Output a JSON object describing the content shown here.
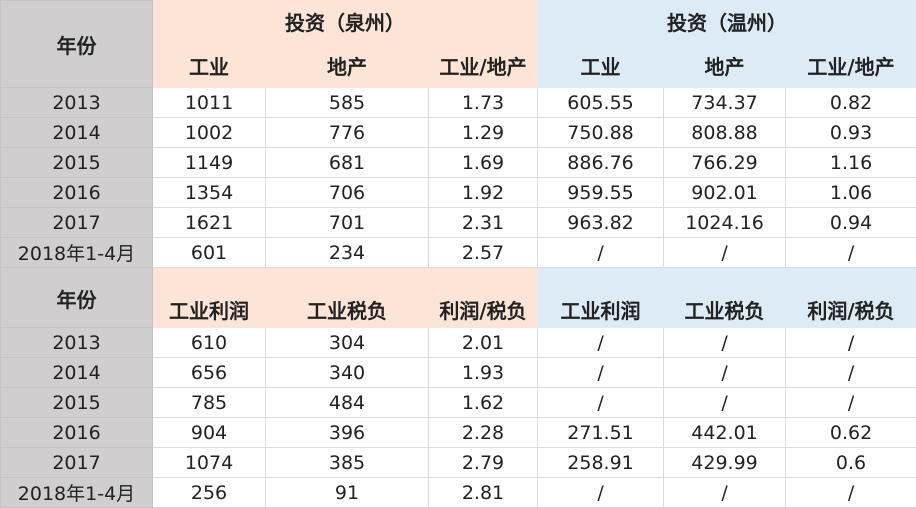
{
  "colors": {
    "peach": "#fce4d6",
    "blue": "#ddebf7",
    "gray": "#d0cece"
  },
  "table1": {
    "year_header": "年份",
    "group_quanzhou": "投资（泉州）",
    "group_wenzhou": "投资（温州）",
    "columns": [
      "工业",
      "地产",
      "工业/地产",
      "工业",
      "地产",
      "工业/地产"
    ],
    "rows": [
      [
        "2013",
        "1011",
        "585",
        "1.73",
        "605.55",
        "734.37",
        "0.82"
      ],
      [
        "2014",
        "1002",
        "776",
        "1.29",
        "750.88",
        "808.88",
        "0.93"
      ],
      [
        "2015",
        "1149",
        "681",
        "1.69",
        "886.76",
        "766.29",
        "1.16"
      ],
      [
        "2016",
        "1354",
        "706",
        "1.92",
        "959.55",
        "902.01",
        "1.06"
      ],
      [
        "2017",
        "1621",
        "701",
        "2.31",
        "963.82",
        "1024.16",
        "0.94"
      ],
      [
        "2018年1-4月",
        "601",
        "234",
        "2.57",
        "/",
        "/",
        "/"
      ]
    ]
  },
  "table2": {
    "year_header": "年份",
    "columns": [
      "工业利润",
      "工业税负",
      "利润/税负",
      "工业利润",
      "工业税负",
      "利润/税负"
    ],
    "rows": [
      [
        "2013",
        "610",
        "304",
        "2.01",
        "/",
        "/",
        "/"
      ],
      [
        "2014",
        "656",
        "340",
        "1.93",
        "/",
        "/",
        "/"
      ],
      [
        "2015",
        "785",
        "484",
        "1.62",
        "/",
        "/",
        "/"
      ],
      [
        "2016",
        "904",
        "396",
        "2.28",
        "271.51",
        "442.01",
        "0.62"
      ],
      [
        "2017",
        "1074",
        "385",
        "2.79",
        "258.91",
        "429.99",
        "0.6"
      ],
      [
        "2018年1-4月",
        "256",
        "91",
        "2.81",
        "/",
        "/",
        "/"
      ]
    ]
  }
}
